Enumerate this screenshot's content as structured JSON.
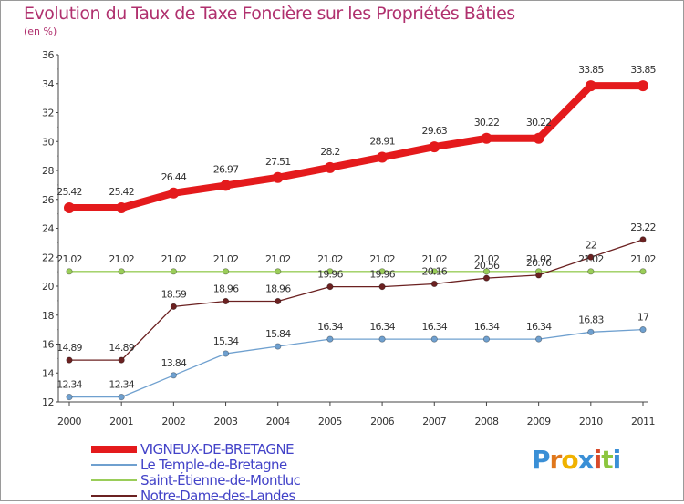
{
  "title": "Evolution du Taux de Taxe Foncière sur les Propriétés Bâties",
  "subtitle": "(en %)",
  "logo": {
    "text": "Proxiti",
    "letters": [
      "P",
      "r",
      "o",
      "x",
      "i",
      "t",
      "i"
    ],
    "colors": [
      "#3a8fd6",
      "#e0771b",
      "#f0b200",
      "#3a8fd6",
      "#d84a2a",
      "#8cc63e",
      "#3a8fd6"
    ]
  },
  "chart_data": {
    "type": "line",
    "title": "Evolution du Taux de Taxe Foncière sur les Propriétés Bâties",
    "ylabel": "(en %)",
    "x": [
      2000,
      2001,
      2002,
      2003,
      2004,
      2005,
      2006,
      2007,
      2008,
      2009,
      2010,
      2011
    ],
    "ylim": [
      12,
      36
    ],
    "yticks": [
      12,
      14,
      16,
      18,
      20,
      22,
      24,
      26,
      28,
      30,
      32,
      34,
      36
    ],
    "grid": false,
    "legend_position": "bottom-left",
    "series": [
      {
        "name": "VIGNEUX-DE-BRETAGNE",
        "color": "#e41a1c",
        "values": [
          25.42,
          25.42,
          26.44,
          26.97,
          27.51,
          28.2,
          28.91,
          29.63,
          30.22,
          30.22,
          33.85,
          33.85
        ],
        "labels": [
          "25.42",
          "25.42",
          "26.44",
          "26.97",
          "27.51",
          "28.2",
          "28.91",
          "29.63",
          "30.22",
          "30.22",
          "33.85",
          "33.85"
        ]
      },
      {
        "name": "Le Temple-de-Bretagne",
        "color": "#6fa0cf",
        "values": [
          12.34,
          12.34,
          13.84,
          15.34,
          15.84,
          16.34,
          16.34,
          16.34,
          16.34,
          16.34,
          16.83,
          17
        ],
        "labels": [
          "12.34",
          "12.34",
          "13.84",
          "15.34",
          "15.84",
          "16.34",
          "16.34",
          "16.34",
          "16.34",
          "16.34",
          "16.83",
          "17"
        ]
      },
      {
        "name": "Saint-Étienne-de-Montluc",
        "color": "#9acd59",
        "values": [
          21.02,
          21.02,
          21.02,
          21.02,
          21.02,
          21.02,
          21.02,
          21.02,
          21.02,
          21.02,
          21.02,
          21.02
        ],
        "labels": [
          "21.02",
          "21.02",
          "21.02",
          "21.02",
          "21.02",
          "21.02",
          "21.02",
          "21.02",
          "21.02",
          "21.02",
          "21.02",
          "21.02"
        ]
      },
      {
        "name": "Notre-Dame-des-Landes",
        "color": "#6b2121",
        "values": [
          14.89,
          14.89,
          18.59,
          18.96,
          18.96,
          19.96,
          19.96,
          20.16,
          20.56,
          20.76,
          22,
          23.22
        ],
        "labels": [
          "14.89",
          "14.89",
          "18.59",
          "18.96",
          "18.96",
          "19.96",
          "19.96",
          "20.16",
          "20.56",
          "20.76",
          "22",
          "23.22"
        ]
      }
    ]
  }
}
